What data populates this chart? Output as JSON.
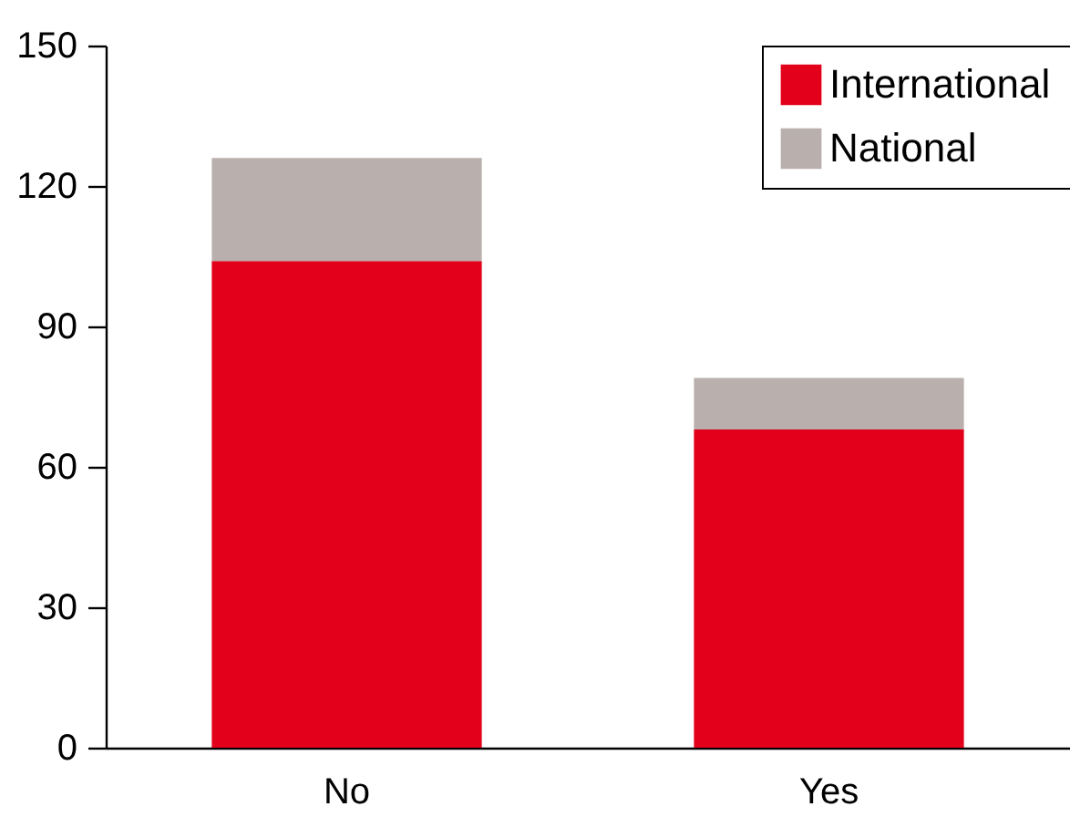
{
  "chart_data": {
    "type": "bar",
    "stacked": true,
    "categories": [
      "No",
      "Yes"
    ],
    "series": [
      {
        "name": "International",
        "color": "#e2001a",
        "values": [
          104,
          68
        ]
      },
      {
        "name": "National",
        "color": "#b9b0ad",
        "values": [
          22,
          11
        ]
      }
    ],
    "ylim": [
      0,
      150
    ],
    "yticks": [
      0,
      30,
      60,
      90,
      120,
      150
    ],
    "grid": false,
    "legend": "top right"
  }
}
